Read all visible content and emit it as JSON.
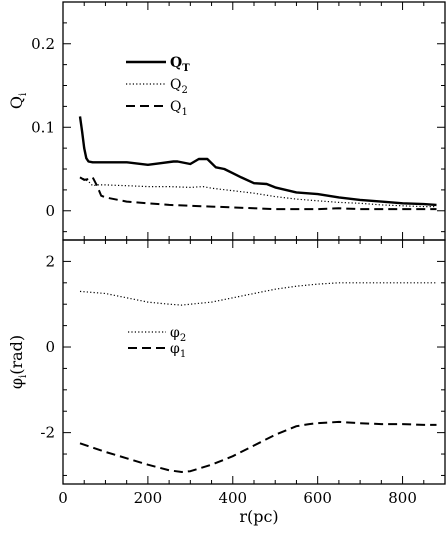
{
  "chart_data": [
    {
      "type": "line",
      "panel": "top",
      "ylabel": "Q",
      "ylabel_sub": "i",
      "xlim": [
        0,
        900
      ],
      "ylim": [
        -0.035,
        0.25
      ],
      "xticks": [
        0,
        200,
        400,
        600,
        800
      ],
      "yticks": [
        0,
        0.1,
        0.2
      ],
      "ytick_labels": [
        "0",
        "0.1",
        "0.2"
      ],
      "grid": false,
      "legend_position": "upper-left",
      "series": [
        {
          "name": "Q",
          "name_sub": "T",
          "style": "solid",
          "color": "#000000",
          "x": [
            40,
            45,
            50,
            55,
            60,
            70,
            80,
            100,
            150,
            200,
            230,
            260,
            270,
            300,
            320,
            340,
            360,
            380,
            400,
            420,
            450,
            480,
            500,
            550,
            600,
            650,
            700,
            750,
            800,
            850,
            880
          ],
          "y": [
            0.113,
            0.095,
            0.075,
            0.063,
            0.059,
            0.058,
            0.058,
            0.058,
            0.058,
            0.055,
            0.057,
            0.059,
            0.059,
            0.056,
            0.062,
            0.062,
            0.052,
            0.05,
            0.045,
            0.04,
            0.033,
            0.032,
            0.028,
            0.022,
            0.02,
            0.016,
            0.013,
            0.011,
            0.009,
            0.008,
            0.007
          ]
        },
        {
          "name": "Q",
          "name_sub": "2",
          "style": "dotted",
          "color": "#000000",
          "x": [
            40,
            50,
            60,
            70,
            80,
            100,
            150,
            200,
            250,
            300,
            330,
            350,
            400,
            450,
            500,
            550,
            600,
            650,
            700,
            750,
            800,
            850,
            880
          ],
          "y": [
            0.04,
            0.038,
            0.035,
            0.03,
            0.031,
            0.031,
            0.03,
            0.029,
            0.029,
            0.028,
            0.029,
            0.027,
            0.024,
            0.021,
            0.017,
            0.014,
            0.012,
            0.01,
            0.009,
            0.007,
            0.006,
            0.005,
            0.005
          ]
        },
        {
          "name": "Q",
          "name_sub": "1",
          "style": "dashed",
          "color": "#000000",
          "x": [
            40,
            50,
            60,
            70,
            80,
            90,
            100,
            150,
            200,
            250,
            300,
            350,
            400,
            450,
            500,
            550,
            600,
            650,
            700,
            750,
            800,
            850,
            880
          ],
          "y": [
            0.04,
            0.037,
            0.038,
            0.04,
            0.03,
            0.018,
            0.016,
            0.011,
            0.009,
            0.007,
            0.006,
            0.005,
            0.004,
            0.003,
            0.002,
            0.002,
            0.002,
            0.003,
            0.002,
            0.002,
            0.002,
            0.002,
            0.002
          ]
        }
      ]
    },
    {
      "type": "line",
      "panel": "bottom",
      "ylabel": "φ",
      "ylabel_sub": "i",
      "ylabel_suffix": "(rad)",
      "xlabel": "r(pc)",
      "xlim": [
        0,
        900
      ],
      "ylim": [
        -3.2,
        2.5
      ],
      "xticks": [
        0,
        200,
        400,
        600,
        800
      ],
      "xtick_labels": [
        "0",
        "200",
        "400",
        "600",
        "800"
      ],
      "yticks": [
        -2,
        0,
        2
      ],
      "ytick_labels": [
        "-2",
        "0",
        "2"
      ],
      "grid": false,
      "legend_position": "center-left",
      "series": [
        {
          "name": "φ",
          "name_sub": "2",
          "style": "dotted",
          "color": "#000000",
          "x": [
            40,
            100,
            150,
            200,
            250,
            280,
            300,
            350,
            400,
            450,
            500,
            550,
            600,
            650,
            700,
            750,
            800,
            850,
            880
          ],
          "y": [
            1.3,
            1.25,
            1.15,
            1.05,
            1.0,
            0.98,
            1.0,
            1.05,
            1.15,
            1.25,
            1.35,
            1.42,
            1.47,
            1.5,
            1.5,
            1.5,
            1.5,
            1.5,
            1.5
          ]
        },
        {
          "name": "φ",
          "name_sub": "1",
          "style": "dashed",
          "color": "#000000",
          "x": [
            40,
            100,
            150,
            200,
            250,
            280,
            300,
            350,
            400,
            450,
            500,
            550,
            580,
            600,
            650,
            700,
            750,
            800,
            850,
            880
          ],
          "y": [
            -2.25,
            -2.45,
            -2.6,
            -2.75,
            -2.88,
            -2.92,
            -2.9,
            -2.75,
            -2.55,
            -2.3,
            -2.05,
            -1.85,
            -1.8,
            -1.78,
            -1.75,
            -1.78,
            -1.8,
            -1.8,
            -1.82,
            -1.82
          ]
        }
      ]
    }
  ]
}
